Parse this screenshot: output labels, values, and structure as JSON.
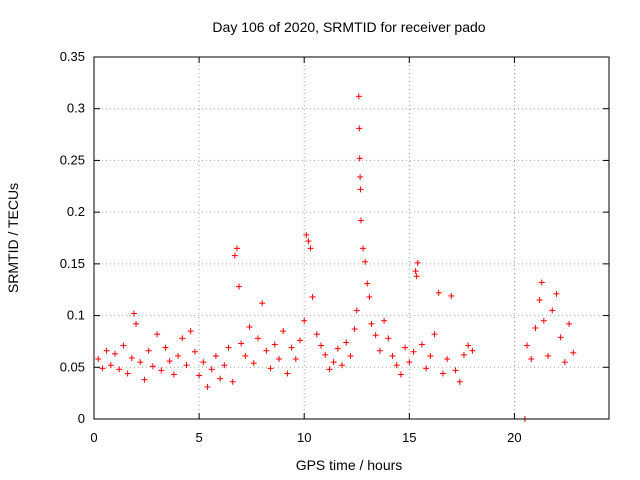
{
  "chart_data": {
    "type": "scatter",
    "title": "Day 106 of 2020, SRMTID for receiver pado",
    "xlabel": "GPS time / hours",
    "ylabel": "SRMTID / TECUs",
    "xlim": [
      0,
      24.5
    ],
    "ylim": [
      0,
      0.35
    ],
    "xticks": [
      0,
      5,
      10,
      15,
      20
    ],
    "xtick_labels": [
      "0",
      "5",
      "10",
      "15",
      "20"
    ],
    "yticks": [
      0,
      0.05,
      0.1,
      0.15,
      0.2,
      0.25,
      0.3,
      0.35
    ],
    "ytick_labels": [
      "0",
      "0.05",
      "0.1",
      "0.15",
      "0.2",
      "0.25",
      "0.3",
      "0.35"
    ],
    "grid": true,
    "marker": "+",
    "color": "#ff0000",
    "series": [
      {
        "name": "SRMTID",
        "points": [
          [
            0.2,
            0.058
          ],
          [
            0.4,
            0.049
          ],
          [
            0.6,
            0.066
          ],
          [
            0.8,
            0.052
          ],
          [
            1.0,
            0.063
          ],
          [
            1.2,
            0.048
          ],
          [
            1.4,
            0.071
          ],
          [
            1.6,
            0.044
          ],
          [
            1.8,
            0.059
          ],
          [
            1.9,
            0.102
          ],
          [
            2.0,
            0.092
          ],
          [
            2.2,
            0.055
          ],
          [
            2.4,
            0.038
          ],
          [
            2.6,
            0.066
          ],
          [
            2.8,
            0.051
          ],
          [
            3.0,
            0.082
          ],
          [
            3.2,
            0.047
          ],
          [
            3.4,
            0.069
          ],
          [
            3.6,
            0.056
          ],
          [
            3.8,
            0.043
          ],
          [
            4.0,
            0.061
          ],
          [
            4.2,
            0.078
          ],
          [
            4.4,
            0.052
          ],
          [
            4.6,
            0.085
          ],
          [
            4.8,
            0.065
          ],
          [
            5.0,
            0.042
          ],
          [
            5.2,
            0.055
          ],
          [
            5.4,
            0.031
          ],
          [
            5.6,
            0.048
          ],
          [
            5.8,
            0.061
          ],
          [
            6.0,
            0.039
          ],
          [
            6.2,
            0.052
          ],
          [
            6.4,
            0.069
          ],
          [
            6.6,
            0.036
          ],
          [
            6.7,
            0.158
          ],
          [
            6.8,
            0.165
          ],
          [
            6.9,
            0.128
          ],
          [
            7.0,
            0.073
          ],
          [
            7.2,
            0.061
          ],
          [
            7.4,
            0.089
          ],
          [
            7.6,
            0.054
          ],
          [
            7.8,
            0.078
          ],
          [
            8.0,
            0.112
          ],
          [
            8.2,
            0.066
          ],
          [
            8.4,
            0.049
          ],
          [
            8.6,
            0.072
          ],
          [
            8.8,
            0.058
          ],
          [
            9.0,
            0.085
          ],
          [
            9.2,
            0.044
          ],
          [
            9.4,
            0.069
          ],
          [
            9.6,
            0.058
          ],
          [
            9.8,
            0.076
          ],
          [
            10.0,
            0.095
          ],
          [
            10.1,
            0.178
          ],
          [
            10.2,
            0.172
          ],
          [
            10.3,
            0.165
          ],
          [
            10.4,
            0.118
          ],
          [
            10.6,
            0.082
          ],
          [
            10.8,
            0.071
          ],
          [
            11.0,
            0.062
          ],
          [
            11.2,
            0.048
          ],
          [
            11.4,
            0.055
          ],
          [
            11.6,
            0.068
          ],
          [
            11.8,
            0.052
          ],
          [
            12.0,
            0.074
          ],
          [
            12.2,
            0.061
          ],
          [
            12.4,
            0.087
          ],
          [
            12.5,
            0.105
          ],
          [
            12.6,
            0.312
          ],
          [
            12.62,
            0.281
          ],
          [
            12.64,
            0.252
          ],
          [
            12.66,
            0.234
          ],
          [
            12.68,
            0.222
          ],
          [
            12.7,
            0.192
          ],
          [
            12.8,
            0.165
          ],
          [
            12.9,
            0.152
          ],
          [
            13.0,
            0.131
          ],
          [
            13.1,
            0.118
          ],
          [
            13.2,
            0.092
          ],
          [
            13.4,
            0.081
          ],
          [
            13.6,
            0.066
          ],
          [
            13.8,
            0.095
          ],
          [
            14.0,
            0.078
          ],
          [
            14.2,
            0.061
          ],
          [
            14.4,
            0.052
          ],
          [
            14.6,
            0.043
          ],
          [
            14.8,
            0.069
          ],
          [
            15.0,
            0.055
          ],
          [
            15.2,
            0.065
          ],
          [
            15.3,
            0.143
          ],
          [
            15.35,
            0.138
          ],
          [
            15.4,
            0.151
          ],
          [
            15.6,
            0.072
          ],
          [
            15.8,
            0.049
          ],
          [
            16.0,
            0.061
          ],
          [
            16.2,
            0.082
          ],
          [
            16.4,
            0.122
          ],
          [
            16.6,
            0.044
          ],
          [
            16.8,
            0.058
          ],
          [
            17.0,
            0.119
          ],
          [
            17.2,
            0.047
          ],
          [
            17.4,
            0.036
          ],
          [
            17.6,
            0.062
          ],
          [
            17.8,
            0.071
          ],
          [
            18.0,
            0.066
          ],
          [
            20.5,
            0.0
          ],
          [
            20.6,
            0.071
          ],
          [
            20.8,
            0.058
          ],
          [
            21.0,
            0.088
          ],
          [
            21.2,
            0.115
          ],
          [
            21.3,
            0.132
          ],
          [
            21.4,
            0.095
          ],
          [
            21.6,
            0.061
          ],
          [
            21.8,
            0.105
          ],
          [
            22.0,
            0.121
          ],
          [
            22.2,
            0.079
          ],
          [
            22.4,
            0.055
          ],
          [
            22.6,
            0.092
          ],
          [
            22.8,
            0.064
          ]
        ]
      }
    ]
  }
}
